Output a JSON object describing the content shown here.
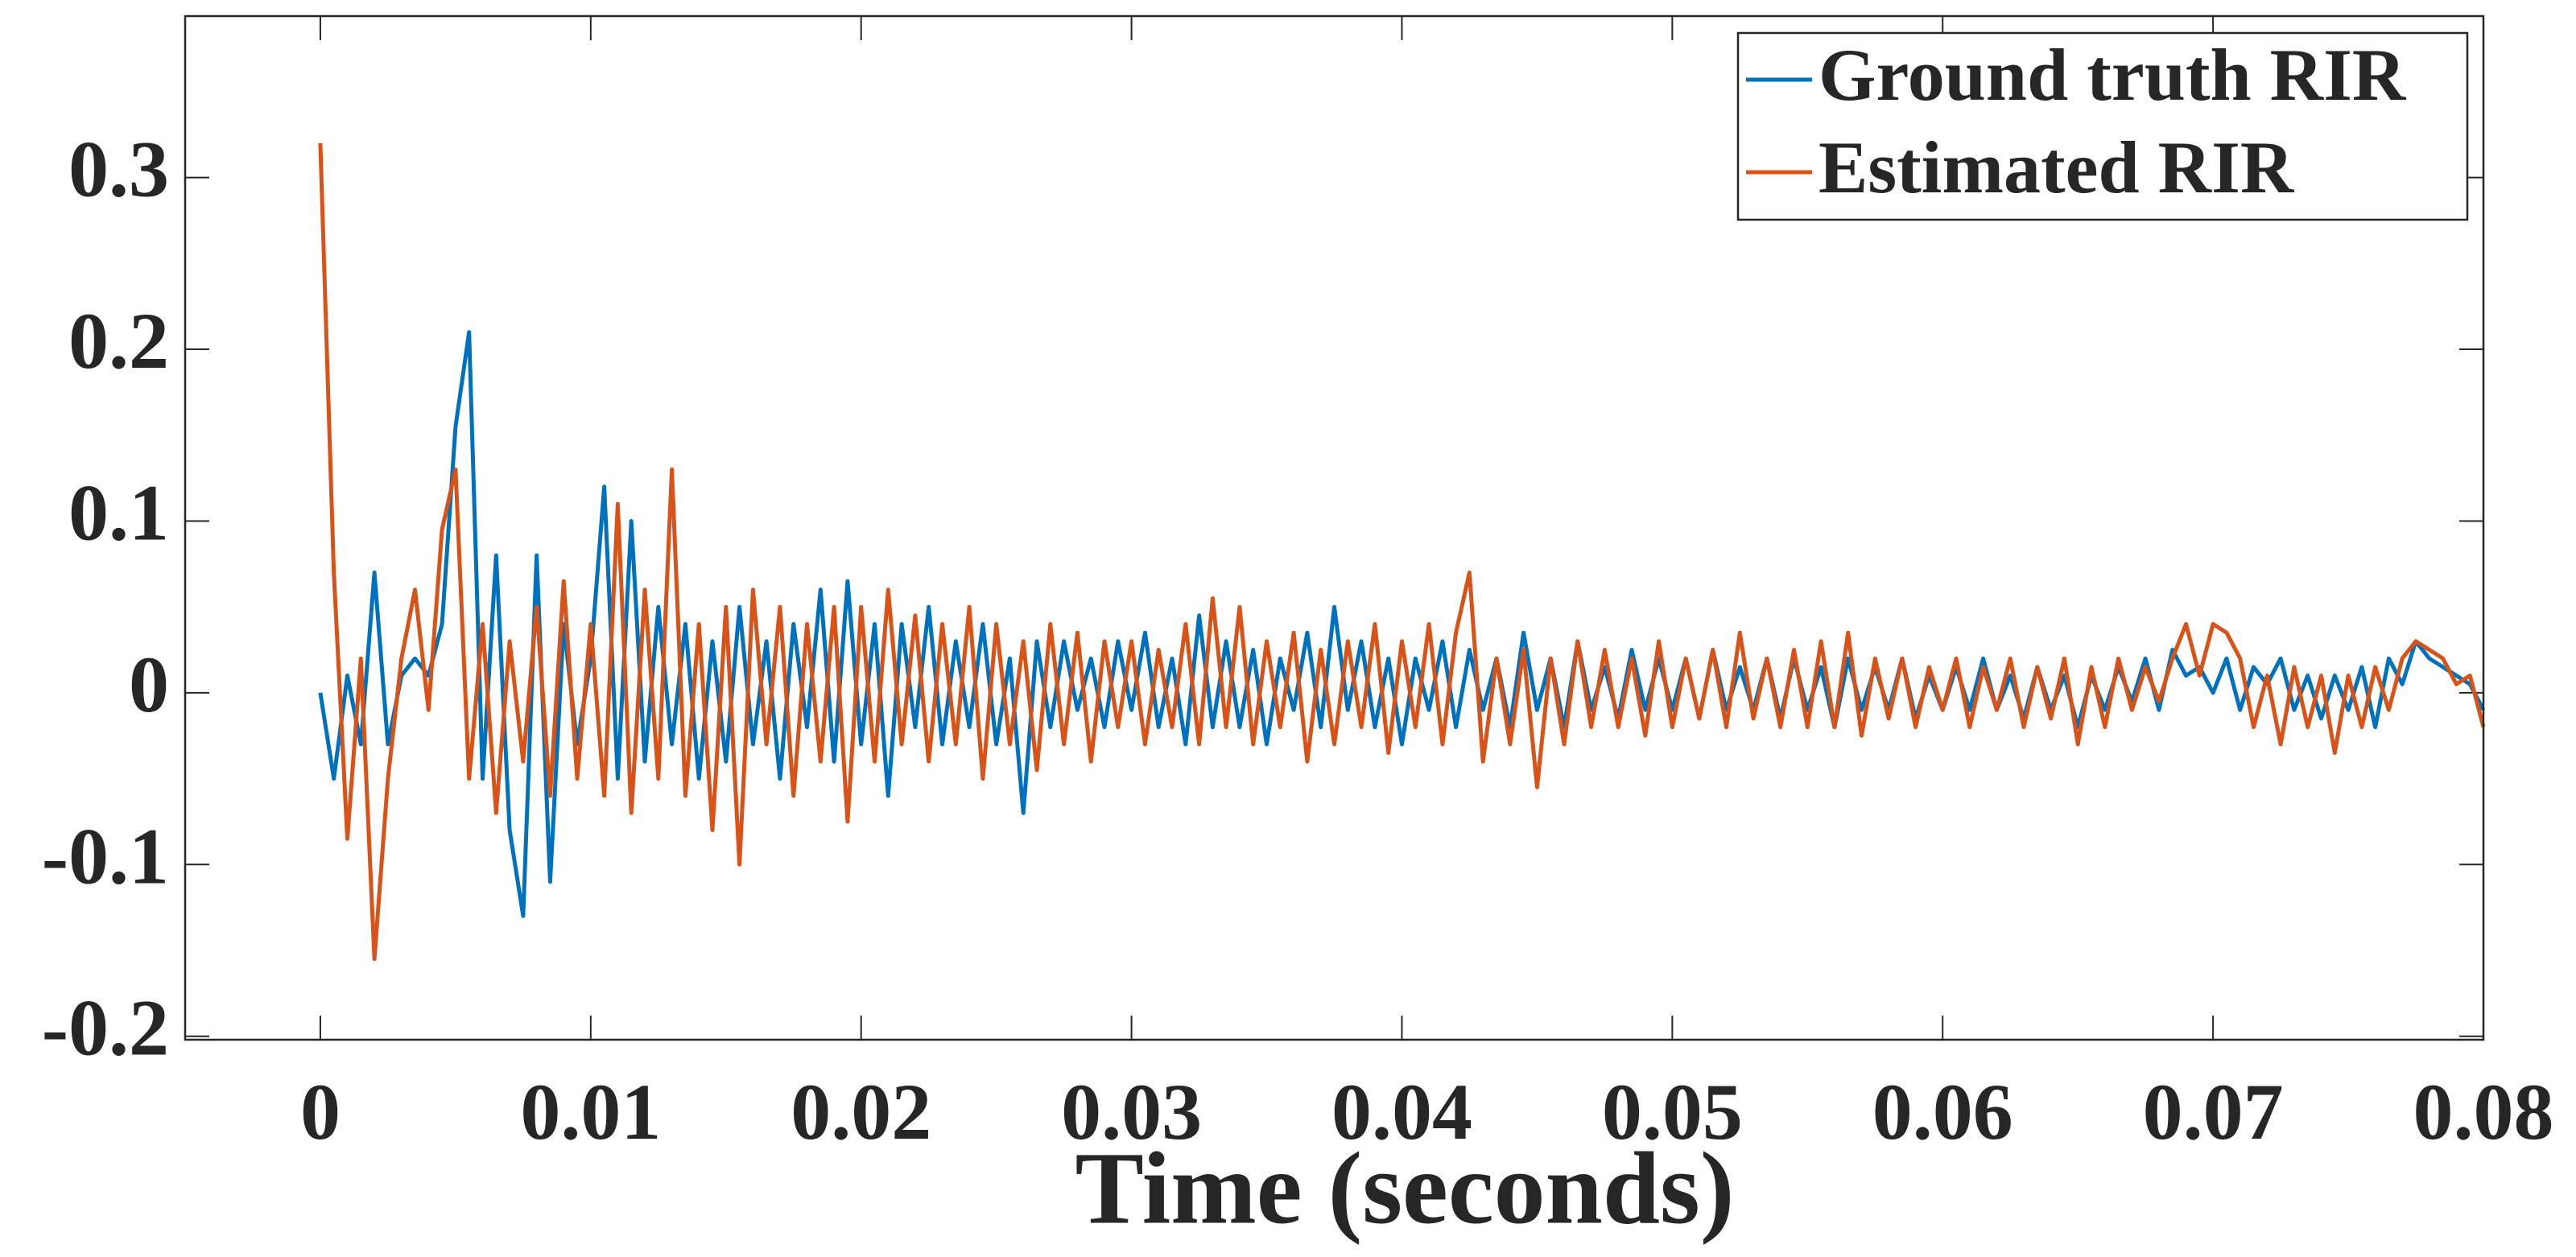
{
  "chart_data": {
    "type": "line",
    "xlabel": "Time (seconds)",
    "xlim": [
      -0.005,
      0.08
    ],
    "ylim": [
      -0.202,
      0.394
    ],
    "xticks": [
      0,
      0.01,
      0.02,
      0.03,
      0.04,
      0.05,
      0.06,
      0.07,
      0.08
    ],
    "yticks": [
      -0.2,
      -0.1,
      0,
      0.1,
      0.2,
      0.3
    ],
    "legend": "upper right",
    "x": [
      0,
      0.0005,
      0.001,
      0.0015,
      0.002,
      0.0025,
      0.003,
      0.0035,
      0.004,
      0.0045,
      0.005,
      0.0055,
      0.006,
      0.0065,
      0.007,
      0.0075,
      0.008,
      0.0085,
      0.009,
      0.0095,
      0.01,
      0.0105,
      0.011,
      0.0115,
      0.012,
      0.0125,
      0.013,
      0.0135,
      0.014,
      0.0145,
      0.015,
      0.0155,
      0.016,
      0.0165,
      0.017,
      0.0175,
      0.018,
      0.0185,
      0.019,
      0.0195,
      0.02,
      0.0205,
      0.021,
      0.0215,
      0.022,
      0.0225,
      0.023,
      0.0235,
      0.024,
      0.0245,
      0.025,
      0.0255,
      0.026,
      0.0265,
      0.027,
      0.0275,
      0.028,
      0.0285,
      0.029,
      0.0295,
      0.03,
      0.0305,
      0.031,
      0.0315,
      0.032,
      0.0325,
      0.033,
      0.0335,
      0.034,
      0.0345,
      0.035,
      0.0355,
      0.036,
      0.0365,
      0.037,
      0.0375,
      0.038,
      0.0385,
      0.039,
      0.0395,
      0.04,
      0.0405,
      0.041,
      0.0415,
      0.042,
      0.0425,
      0.043,
      0.0435,
      0.044,
      0.0445,
      0.045,
      0.0455,
      0.046,
      0.0465,
      0.047,
      0.0475,
      0.048,
      0.0485,
      0.049,
      0.0495,
      0.05,
      0.0505,
      0.051,
      0.0515,
      0.052,
      0.0525,
      0.053,
      0.0535,
      0.054,
      0.0545,
      0.055,
      0.0555,
      0.056,
      0.0565,
      0.057,
      0.0575,
      0.058,
      0.0585,
      0.059,
      0.0595,
      0.06,
      0.0605,
      0.061,
      0.0615,
      0.062,
      0.0625,
      0.063,
      0.0635,
      0.064,
      0.0645,
      0.065,
      0.0655,
      0.066,
      0.0665,
      0.067,
      0.0675,
      0.068,
      0.0685,
      0.069,
      0.0695,
      0.07,
      0.0705,
      0.071,
      0.0715,
      0.072,
      0.0725,
      0.073,
      0.0735,
      0.074,
      0.0745,
      0.075,
      0.0755,
      0.076,
      0.0765,
      0.077,
      0.0775,
      0.078,
      0.0785,
      0.079,
      0.0795,
      0.08
    ],
    "series": [
      {
        "name": "Ground truth RIR",
        "color": "#0072bd",
        "values": [
          0,
          -0.05,
          0.01,
          -0.03,
          0.07,
          -0.03,
          0.01,
          0.02,
          0.01,
          0.04,
          0.155,
          0.21,
          -0.05,
          0.08,
          -0.08,
          -0.13,
          0.08,
          -0.11,
          0.04,
          -0.03,
          0.02,
          0.12,
          -0.05,
          0.1,
          -0.04,
          0.05,
          -0.03,
          0.04,
          -0.05,
          0.03,
          -0.04,
          0.05,
          -0.03,
          0.03,
          -0.05,
          0.04,
          -0.02,
          0.06,
          -0.04,
          0.065,
          -0.03,
          0.04,
          -0.06,
          0.04,
          -0.02,
          0.05,
          -0.03,
          0.03,
          -0.02,
          0.04,
          -0.03,
          0.02,
          -0.07,
          0.03,
          -0.02,
          0.03,
          -0.01,
          0.02,
          -0.02,
          0.03,
          -0.01,
          0.035,
          -0.02,
          0.02,
          -0.03,
          0.045,
          -0.02,
          0.03,
          -0.02,
          0.025,
          -0.03,
          0.02,
          -0.01,
          0.035,
          -0.02,
          0.05,
          -0.01,
          0.03,
          -0.02,
          0.02,
          -0.03,
          0.02,
          -0.01,
          0.03,
          -0.02,
          0.025,
          -0.01,
          0.02,
          -0.02,
          0.035,
          -0.01,
          0.02,
          -0.02,
          0.03,
          -0.01,
          0.015,
          -0.015,
          0.025,
          -0.01,
          0.02,
          -0.01,
          0.02,
          -0.015,
          0.025,
          -0.01,
          0.015,
          -0.01,
          0.02,
          -0.015,
          0.02,
          -0.01,
          0.015,
          -0.02,
          0.02,
          -0.01,
          0.015,
          -0.01,
          0.02,
          -0.015,
          0.01,
          -0.01,
          0.015,
          -0.01,
          0.02,
          -0.01,
          0.01,
          -0.015,
          0.015,
          -0.01,
          0.01,
          -0.02,
          0.01,
          -0.01,
          0.015,
          -0.005,
          0.02,
          -0.01,
          0.025,
          0.01,
          0.015,
          0,
          0.02,
          -0.01,
          0.015,
          0.005,
          0.02,
          -0.01,
          0.01,
          -0.015,
          0.01,
          -0.01,
          0.015,
          -0.02,
          0.02,
          0.005,
          0.03,
          0.02,
          0.015,
          0.01,
          0.005,
          -0.01
        ]
      },
      {
        "name": "Estimated RIR",
        "color": "#d95319",
        "values": [
          0.32,
          0.07,
          -0.085,
          0.02,
          -0.155,
          -0.05,
          0.02,
          0.06,
          -0.01,
          0.095,
          0.13,
          -0.05,
          0.04,
          -0.07,
          0.03,
          -0.04,
          0.05,
          -0.06,
          0.065,
          -0.05,
          0.04,
          -0.06,
          0.11,
          -0.07,
          0.06,
          -0.05,
          0.13,
          -0.06,
          0.04,
          -0.08,
          0.05,
          -0.1,
          0.06,
          -0.03,
          0.05,
          -0.06,
          0.04,
          -0.04,
          0.05,
          -0.075,
          0.05,
          -0.04,
          0.06,
          -0.03,
          0.045,
          -0.04,
          0.04,
          -0.03,
          0.05,
          -0.05,
          0.04,
          -0.03,
          0.03,
          -0.045,
          0.04,
          -0.03,
          0.035,
          -0.04,
          0.03,
          -0.02,
          0.03,
          -0.03,
          0.025,
          -0.02,
          0.04,
          -0.03,
          0.055,
          -0.02,
          0.05,
          -0.03,
          0.03,
          -0.02,
          0.035,
          -0.04,
          0.025,
          -0.03,
          0.03,
          -0.02,
          0.04,
          -0.035,
          0.03,
          -0.02,
          0.04,
          -0.03,
          0.035,
          0.07,
          -0.04,
          0.02,
          -0.03,
          0.025,
          -0.055,
          0.02,
          -0.03,
          0.03,
          -0.02,
          0.025,
          -0.02,
          0.02,
          -0.025,
          0.03,
          -0.02,
          0.02,
          -0.015,
          0.025,
          -0.02,
          0.035,
          -0.015,
          0.02,
          -0.02,
          0.025,
          -0.02,
          0.03,
          -0.02,
          0.035,
          -0.025,
          0.02,
          -0.015,
          0.02,
          -0.02,
          0.015,
          -0.01,
          0.02,
          -0.02,
          0.015,
          -0.01,
          0.02,
          -0.02,
          0.015,
          -0.015,
          0.02,
          -0.03,
          0.015,
          -0.02,
          0.02,
          -0.01,
          0.015,
          -0.005,
          0.02,
          0.04,
          0.01,
          0.04,
          0.035,
          0.02,
          -0.02,
          0.01,
          -0.03,
          0.015,
          -0.02,
          0.01,
          -0.035,
          0.01,
          -0.02,
          0.015,
          -0.01,
          0.02,
          0.03,
          0.025,
          0.02,
          0.005,
          0.01,
          -0.02
        ]
      }
    ]
  }
}
